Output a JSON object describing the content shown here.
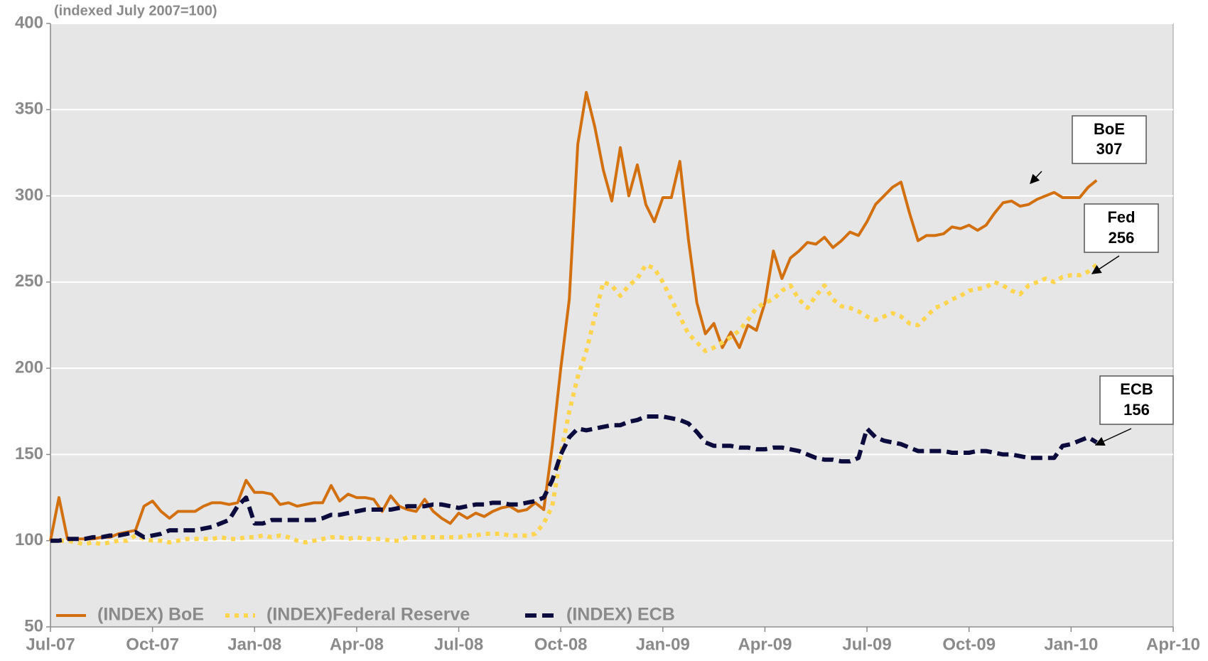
{
  "chart_data": {
    "type": "line",
    "subtitle": "(indexed July 2007=100)",
    "x": [
      0,
      0.25,
      0.5,
      0.75,
      1,
      1.25,
      1.5,
      1.75,
      2,
      2.25,
      2.5,
      2.75,
      3,
      3.25,
      3.5,
      3.75,
      4,
      4.25,
      4.5,
      4.75,
      5,
      5.25,
      5.5,
      5.75,
      6,
      6.25,
      6.5,
      6.75,
      7,
      7.25,
      7.5,
      7.75,
      8,
      8.25,
      8.5,
      8.75,
      9,
      9.25,
      9.5,
      9.75,
      10,
      10.25,
      10.5,
      10.75,
      11,
      11.25,
      11.5,
      11.75,
      12,
      12.25,
      12.5,
      12.75,
      13,
      13.25,
      13.5,
      13.75,
      14,
      14.25,
      14.5,
      14.75,
      15,
      15.25,
      15.5,
      15.75,
      16,
      16.25,
      16.5,
      16.75,
      17,
      17.25,
      17.5,
      17.75,
      18,
      18.25,
      18.5,
      18.75,
      19,
      19.25,
      19.5,
      19.75,
      20,
      20.25,
      20.5,
      20.75,
      21,
      21.25,
      21.5,
      21.75,
      22,
      22.25,
      22.5,
      22.75,
      23,
      23.25,
      23.5,
      23.75,
      24,
      24.25,
      24.5,
      24.75,
      25,
      25.25,
      25.5,
      25.75,
      26,
      26.25,
      26.5,
      26.75,
      27,
      27.25,
      27.5,
      27.75,
      28,
      28.25,
      28.5,
      28.75,
      29,
      29.25,
      29.5,
      29.75,
      30,
      30.25,
      30.5,
      30.75,
      31
    ],
    "series": [
      {
        "name": "(INDEX) BoE",
        "color": "#d2700f",
        "style": "solid",
        "values": [
          100,
          125,
          101,
          101,
          101,
          101,
          102,
          102,
          104,
          105,
          106,
          120,
          123,
          117,
          113,
          117,
          117,
          117,
          120,
          122,
          122,
          121,
          122,
          135,
          128,
          128,
          127,
          121,
          122,
          120,
          121,
          122,
          122,
          132,
          123,
          127,
          125,
          125,
          124,
          117,
          126,
          120,
          118,
          117,
          124,
          117,
          113,
          110,
          116,
          113,
          116,
          114,
          117,
          119,
          120,
          117,
          118,
          122,
          118,
          155,
          200,
          240,
          330,
          360,
          340,
          315,
          297,
          328,
          300,
          318,
          295,
          285,
          299,
          299,
          320,
          275,
          238,
          220,
          226,
          212,
          221,
          212,
          225,
          222,
          238,
          268,
          252,
          264,
          268,
          273,
          272,
          276,
          270,
          274,
          279,
          277,
          285,
          295,
          300,
          305,
          308,
          290,
          274,
          277,
          277,
          278,
          282,
          281,
          283,
          280,
          283,
          290,
          296,
          297,
          294,
          295,
          298,
          300,
          302,
          299,
          299,
          299,
          305,
          309,
          null
        ]
      },
      {
        "name": "(INDEX)Federal Reserve",
        "color": "#ffd54f",
        "style": "dotted",
        "values": [
          100,
          100,
          100,
          99,
          98,
          99,
          98,
          99,
          100,
          100,
          103,
          101,
          100,
          100,
          99,
          100,
          101,
          101,
          101,
          101,
          102,
          101,
          101,
          102,
          102,
          103,
          102,
          103,
          102,
          100,
          99,
          100,
          101,
          102,
          102,
          101,
          102,
          101,
          101,
          101,
          100,
          100,
          102,
          102,
          102,
          102,
          102,
          102,
          102,
          103,
          103,
          104,
          104,
          104,
          103,
          103,
          103,
          104,
          110,
          120,
          150,
          175,
          195,
          210,
          230,
          250,
          248,
          242,
          248,
          252,
          260,
          258,
          250,
          240,
          230,
          220,
          215,
          210,
          212,
          215,
          218,
          222,
          228,
          235,
          238,
          240,
          245,
          248,
          240,
          235,
          242,
          248,
          240,
          236,
          235,
          233,
          230,
          228,
          230,
          232,
          230,
          226,
          225,
          230,
          235,
          237,
          240,
          242,
          245,
          246,
          247,
          250,
          248,
          245,
          243,
          248,
          250,
          252,
          250,
          253,
          254,
          254,
          256,
          260,
          null
        ]
      },
      {
        "name": "(INDEX) ECB",
        "color": "#0b0b3d",
        "style": "dashed",
        "values": [
          100,
          100,
          101,
          101,
          101,
          102,
          102,
          103,
          103,
          104,
          105,
          102,
          103,
          104,
          106,
          106,
          106,
          106,
          107,
          108,
          110,
          112,
          120,
          125,
          110,
          110,
          112,
          112,
          112,
          112,
          112,
          112,
          113,
          115,
          115,
          116,
          117,
          118,
          118,
          118,
          118,
          119,
          120,
          120,
          120,
          121,
          121,
          120,
          119,
          120,
          121,
          121,
          122,
          122,
          121,
          121,
          122,
          123,
          125,
          135,
          150,
          160,
          165,
          164,
          165,
          166,
          167,
          167,
          169,
          170,
          172,
          172,
          172,
          171,
          170,
          168,
          163,
          157,
          155,
          155,
          155,
          154,
          154,
          153,
          153,
          154,
          154,
          153,
          152,
          150,
          148,
          147,
          147,
          146,
          146,
          148,
          165,
          160,
          158,
          157,
          156,
          154,
          152,
          152,
          152,
          152,
          151,
          151,
          151,
          152,
          152,
          151,
          150,
          150,
          149,
          148,
          148,
          148,
          148,
          155,
          156,
          158,
          160,
          157,
          null
        ]
      }
    ],
    "annotations": [
      {
        "label": "BoE",
        "value": 307
      },
      {
        "label": "Fed",
        "value": 256
      },
      {
        "label": "ECB",
        "value": 156
      }
    ],
    "xlim": [
      0,
      33
    ],
    "xticks": [
      {
        "value": 0,
        "label": "Jul-07"
      },
      {
        "value": 3,
        "label": "Oct-07"
      },
      {
        "value": 6,
        "label": "Jan-08"
      },
      {
        "value": 9,
        "label": "Apr-08"
      },
      {
        "value": 12,
        "label": "Jul-08"
      },
      {
        "value": 15,
        "label": "Oct-08"
      },
      {
        "value": 18,
        "label": "Jan-09"
      },
      {
        "value": 21,
        "label": "Apr-09"
      },
      {
        "value": 24,
        "label": "Jul-09"
      },
      {
        "value": 27,
        "label": "Oct-09"
      },
      {
        "value": 30,
        "label": "Jan-10"
      },
      {
        "value": 33,
        "label": "Apr-10"
      }
    ],
    "ylim": [
      50,
      400
    ],
    "yticks": [
      50,
      100,
      150,
      200,
      250,
      300,
      350,
      400
    ],
    "grid": true,
    "legend": "lower left"
  }
}
